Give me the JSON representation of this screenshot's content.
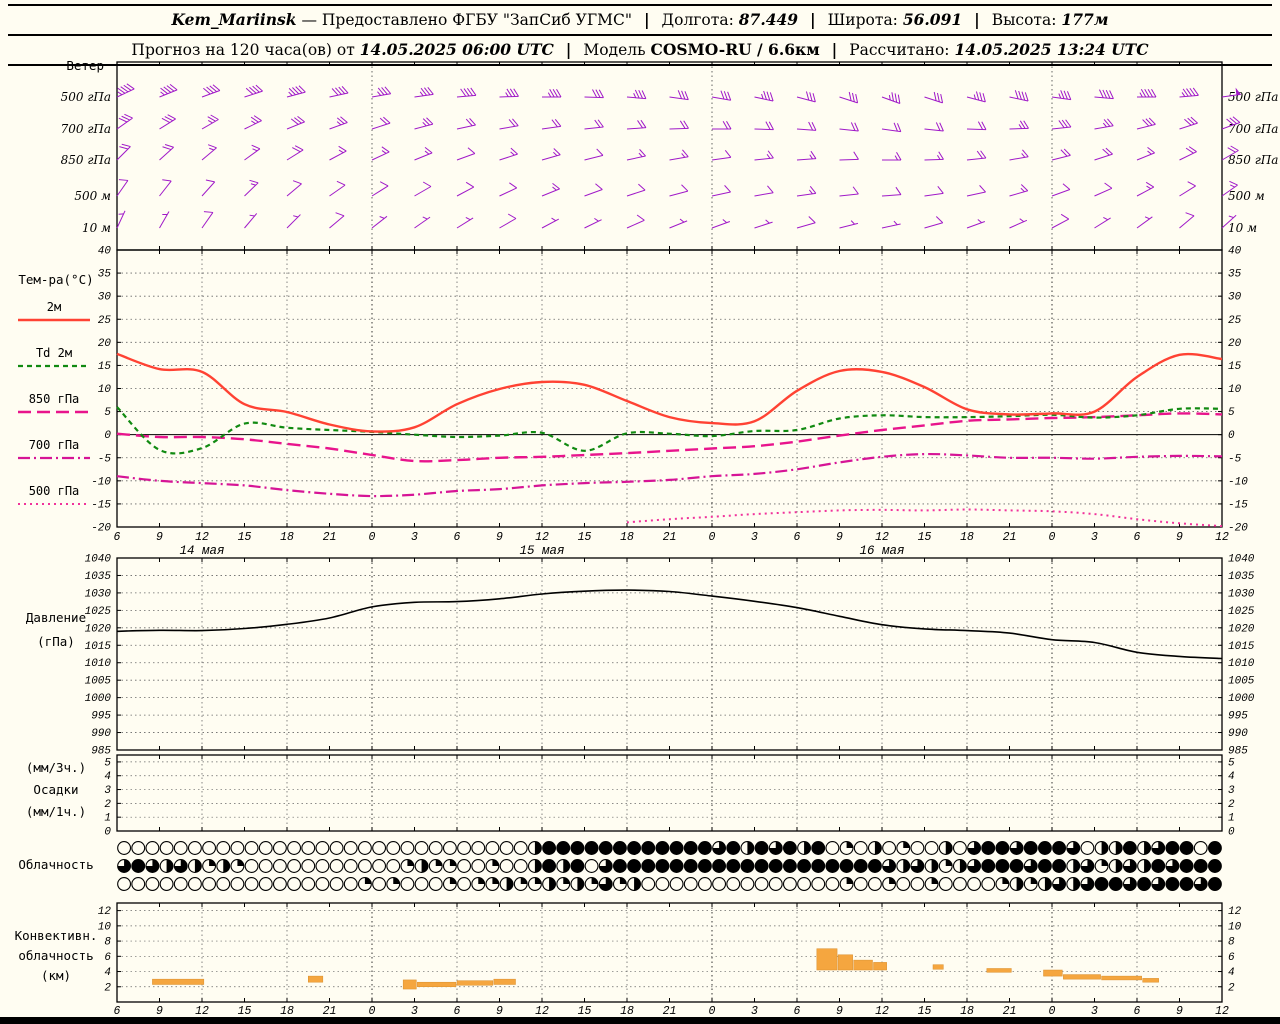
{
  "header": {
    "station": "Kem_Mariinsk",
    "dash": "—",
    "provider": "Предоставлено ФГБУ \"ЗапСиб УГМС\"",
    "sep": "|",
    "lon_label": "Долгота:",
    "lon_value": "87.449",
    "lat_label": "Широта:",
    "lat_value": "56.091",
    "alt_label": "Высота:",
    "alt_value": "177м",
    "line2_prefix": "Прогноз на 120 часа(ов) от",
    "line2_run": "14.05.2025 06:00 UTC",
    "model_label": "Модель",
    "model_value": "COSMO-RU / 6.6км",
    "calc_label": "Рассчитано:",
    "calc_value": "14.05.2025 13:24 UTC"
  },
  "labels": {
    "wind": "Ветер",
    "temp_title": "Тем-ра(°C)",
    "legend_t2m": "2м",
    "legend_td": "Td 2м",
    "legend_t850": "850 гПа",
    "legend_t700": "700 гПа",
    "legend_t500": "500 гПа",
    "pressure_1": "Давление",
    "pressure_2": "(гПа)",
    "precip_1": "(мм/3ч.)",
    "precip_2": "Осадки",
    "precip_3": "(мм/1ч.)",
    "cloud": "Облачность",
    "conv_1": "Конвективн.",
    "conv_2": "облачность",
    "conv_3": "(км)"
  },
  "colors": {
    "t2m": "#ff4233",
    "td2m": "#118a11",
    "t850": "#e8148c",
    "t700": "#d61496",
    "t500": "#f0329b",
    "pressure": "#000000",
    "wind_barb": "#a019c8",
    "conv_cloud": "#f5a63f",
    "grid": "#666666",
    "frame": "#000000"
  },
  "chart_data": {
    "type": "meteogram",
    "x_hours_total": 78,
    "x_hours_step": 3,
    "hour_ticks": [
      6,
      9,
      12,
      15,
      18,
      21,
      0,
      3,
      6,
      9,
      12,
      15,
      18,
      21,
      0,
      3,
      6,
      9,
      12,
      15,
      18,
      21,
      0,
      3,
      6,
      9,
      12
    ],
    "date_labels": [
      {
        "label": "14 мая",
        "t": 6
      },
      {
        "label": "15 мая",
        "t": 30
      },
      {
        "label": "16 мая",
        "t": 54
      }
    ],
    "wind": {
      "rows": [
        {
          "label": "500 гПа",
          "barbs": [
            [
              245,
              45
            ],
            [
              248,
              45
            ],
            [
              250,
              40
            ],
            [
              252,
              40
            ],
            [
              255,
              45
            ],
            [
              258,
              40
            ],
            [
              260,
              35
            ],
            [
              262,
              35
            ],
            [
              265,
              40
            ],
            [
              268,
              35
            ],
            [
              270,
              35
            ],
            [
              272,
              30
            ],
            [
              275,
              35
            ],
            [
              278,
              30
            ],
            [
              280,
              30
            ],
            [
              282,
              35
            ],
            [
              285,
              30
            ],
            [
              288,
              30
            ],
            [
              290,
              35
            ],
            [
              288,
              30
            ],
            [
              285,
              35
            ],
            [
              282,
              40
            ],
            [
              278,
              35
            ],
            [
              275,
              40
            ],
            [
              270,
              45
            ],
            [
              265,
              45
            ],
            [
              262,
              50
            ]
          ]
        },
        {
          "label": "700 гПа",
          "barbs": [
            [
              235,
              30
            ],
            [
              238,
              30
            ],
            [
              240,
              25
            ],
            [
              244,
              25
            ],
            [
              248,
              30
            ],
            [
              250,
              25
            ],
            [
              252,
              20
            ],
            [
              255,
              25
            ],
            [
              258,
              20
            ],
            [
              260,
              20
            ],
            [
              262,
              20
            ],
            [
              264,
              20
            ],
            [
              266,
              20
            ],
            [
              268,
              20
            ],
            [
              270,
              20
            ],
            [
              272,
              20
            ],
            [
              274,
              20
            ],
            [
              276,
              20
            ],
            [
              278,
              20
            ],
            [
              276,
              20
            ],
            [
              272,
              20
            ],
            [
              268,
              25
            ],
            [
              264,
              30
            ],
            [
              260,
              25
            ],
            [
              256,
              30
            ],
            [
              252,
              30
            ],
            [
              250,
              30
            ]
          ]
        },
        {
          "label": "850 гПа",
          "barbs": [
            [
              225,
              20
            ],
            [
              228,
              20
            ],
            [
              230,
              15
            ],
            [
              234,
              15
            ],
            [
              238,
              20
            ],
            [
              242,
              15
            ],
            [
              245,
              15
            ],
            [
              248,
              15
            ],
            [
              250,
              10
            ],
            [
              252,
              15
            ],
            [
              254,
              15
            ],
            [
              256,
              10
            ],
            [
              258,
              15
            ],
            [
              260,
              15
            ],
            [
              262,
              10
            ],
            [
              264,
              15
            ],
            [
              266,
              15
            ],
            [
              268,
              10
            ],
            [
              270,
              15
            ],
            [
              268,
              15
            ],
            [
              264,
              20
            ],
            [
              260,
              15
            ],
            [
              256,
              20
            ],
            [
              252,
              20
            ],
            [
              248,
              15
            ],
            [
              244,
              20
            ],
            [
              240,
              20
            ]
          ]
        },
        {
          "label": "500 м",
          "barbs": [
            [
              215,
              10
            ],
            [
              218,
              10
            ],
            [
              222,
              10
            ],
            [
              226,
              15
            ],
            [
              230,
              10
            ],
            [
              235,
              10
            ],
            [
              238,
              10
            ],
            [
              240,
              10
            ],
            [
              242,
              10
            ],
            [
              245,
              10
            ],
            [
              248,
              15
            ],
            [
              250,
              10
            ],
            [
              252,
              10
            ],
            [
              255,
              10
            ],
            [
              258,
              10
            ],
            [
              260,
              10
            ],
            [
              262,
              15
            ],
            [
              264,
              10
            ],
            [
              266,
              10
            ],
            [
              262,
              10
            ],
            [
              258,
              10
            ],
            [
              254,
              15
            ],
            [
              250,
              10
            ],
            [
              246,
              10
            ],
            [
              242,
              15
            ],
            [
              238,
              10
            ],
            [
              235,
              15
            ]
          ]
        },
        {
          "label": "10 м",
          "barbs": [
            [
              205,
              5
            ],
            [
              210,
              5
            ],
            [
              215,
              10
            ],
            [
              220,
              5
            ],
            [
              225,
              5
            ],
            [
              230,
              10
            ],
            [
              232,
              5
            ],
            [
              235,
              5
            ],
            [
              238,
              5
            ],
            [
              240,
              10
            ],
            [
              242,
              5
            ],
            [
              244,
              5
            ],
            [
              246,
              10
            ],
            [
              248,
              5
            ],
            [
              250,
              5
            ],
            [
              252,
              5
            ],
            [
              254,
              10
            ],
            [
              256,
              5
            ],
            [
              258,
              5
            ],
            [
              254,
              10
            ],
            [
              250,
              5
            ],
            [
              246,
              5
            ],
            [
              242,
              10
            ],
            [
              238,
              5
            ],
            [
              234,
              5
            ],
            [
              230,
              10
            ],
            [
              228,
              5
            ]
          ]
        }
      ]
    },
    "temperature": {
      "ylim": [
        -20,
        40
      ],
      "ticks": [
        40,
        35,
        30,
        25,
        20,
        15,
        10,
        5,
        0,
        -5,
        -10,
        -15,
        -20
      ],
      "series": [
        {
          "name": "2м",
          "key": "t2m",
          "values": [
            17.5,
            14.2,
            13.6,
            6.6,
            4.9,
            2.2,
            0.7,
            1.6,
            6.6,
            9.9,
            11.4,
            10.8,
            7.3,
            3.8,
            2.5,
            2.9,
            9.5,
            13.8,
            13.6,
            10.3,
            5.5,
            4.4,
            4.6,
            5.0,
            12.5,
            17.3,
            16.4
          ]
        },
        {
          "name": "Td 2м",
          "key": "td2m",
          "values": [
            6.0,
            -3.3,
            -2.9,
            2.4,
            1.5,
            1.0,
            0.6,
            0.0,
            -0.5,
            -0.2,
            0.4,
            -3.5,
            0.3,
            0.2,
            -0.3,
            0.8,
            1.0,
            3.5,
            4.2,
            3.8,
            3.8,
            4.0,
            4.3,
            3.7,
            4.2,
            5.6,
            5.6
          ]
        },
        {
          "name": "850 гПа",
          "key": "t850",
          "values": [
            0.2,
            -0.5,
            -0.5,
            -1.0,
            -2.0,
            -3.0,
            -4.4,
            -5.7,
            -5.5,
            -5.0,
            -4.8,
            -4.4,
            -4.0,
            -3.5,
            -3.0,
            -2.5,
            -1.5,
            -0.2,
            1.0,
            2.0,
            3.0,
            3.3,
            3.6,
            3.8,
            4.2,
            4.6,
            4.4
          ]
        },
        {
          "name": "700 гПа",
          "key": "t700",
          "values": [
            -9.0,
            -10.0,
            -10.5,
            -11.0,
            -12.0,
            -12.8,
            -13.3,
            -13.0,
            -12.2,
            -11.8,
            -11.0,
            -10.5,
            -10.2,
            -9.8,
            -9.0,
            -8.5,
            -7.5,
            -6.0,
            -4.8,
            -4.2,
            -4.5,
            -5.0,
            -5.0,
            -5.2,
            -4.8,
            -4.6,
            -4.7
          ]
        },
        {
          "name": "500 гПа",
          "key": "t500",
          "values": [
            null,
            null,
            null,
            null,
            null,
            null,
            null,
            null,
            null,
            null,
            null,
            null,
            -19.0,
            -18.3,
            -17.8,
            -17.2,
            -16.8,
            -16.4,
            -16.3,
            -16.4,
            -16.2,
            -16.4,
            -16.6,
            -17.2,
            -18.3,
            -19.2,
            -19.8
          ]
        }
      ]
    },
    "pressure": {
      "ylim": [
        985,
        1040
      ],
      "ticks": [
        1040,
        1035,
        1030,
        1025,
        1020,
        1015,
        1010,
        1005,
        1000,
        995,
        990,
        985
      ],
      "values": [
        1019.0,
        1019.3,
        1019.2,
        1019.8,
        1021.0,
        1022.8,
        1026.0,
        1027.3,
        1027.5,
        1028.3,
        1029.7,
        1030.5,
        1030.8,
        1030.4,
        1029.1,
        1027.6,
        1025.8,
        1023.3,
        1020.9,
        1019.7,
        1019.2,
        1018.5,
        1016.6,
        1015.8,
        1013.0,
        1011.8,
        1011.2
      ]
    },
    "precip": {
      "ylim": [
        0,
        5.5
      ],
      "ticks": [
        5,
        4,
        3,
        2,
        1,
        0
      ],
      "values": []
    },
    "cloud_rows_oktas": [
      "000000000000000000000000000004888888888888684868480204020040688688860448468808",
      "686464242000000000002422002004848068888888888888888888646424688868846246486888",
      "000000000000000002020002022422424262400000000000000200200200002424646886868868"
    ],
    "convective": {
      "ylim": [
        0,
        13
      ],
      "ticks": [
        12,
        10,
        8,
        6,
        4,
        2
      ],
      "bars": [
        [
          2.5,
          6.2,
          2.3,
          3.0
        ],
        [
          13.5,
          14.6,
          2.6,
          3.4
        ],
        [
          20.2,
          21.2,
          1.7,
          2.9
        ],
        [
          21.2,
          24.0,
          2.0,
          2.6
        ],
        [
          24.0,
          26.6,
          2.2,
          2.8
        ],
        [
          26.6,
          28.2,
          2.3,
          3.0
        ],
        [
          49.4,
          50.9,
          4.2,
          7.0
        ],
        [
          50.9,
          52.0,
          4.2,
          6.2
        ],
        [
          52.0,
          53.4,
          4.2,
          5.5
        ],
        [
          53.4,
          54.4,
          4.2,
          5.2
        ],
        [
          57.6,
          58.4,
          4.3,
          4.9
        ],
        [
          61.4,
          63.2,
          3.9,
          4.4
        ],
        [
          65.4,
          66.8,
          3.4,
          4.2
        ],
        [
          66.8,
          69.5,
          3.0,
          3.6
        ],
        [
          69.5,
          72.4,
          2.9,
          3.4
        ],
        [
          72.4,
          73.6,
          2.6,
          3.1
        ]
      ]
    }
  }
}
